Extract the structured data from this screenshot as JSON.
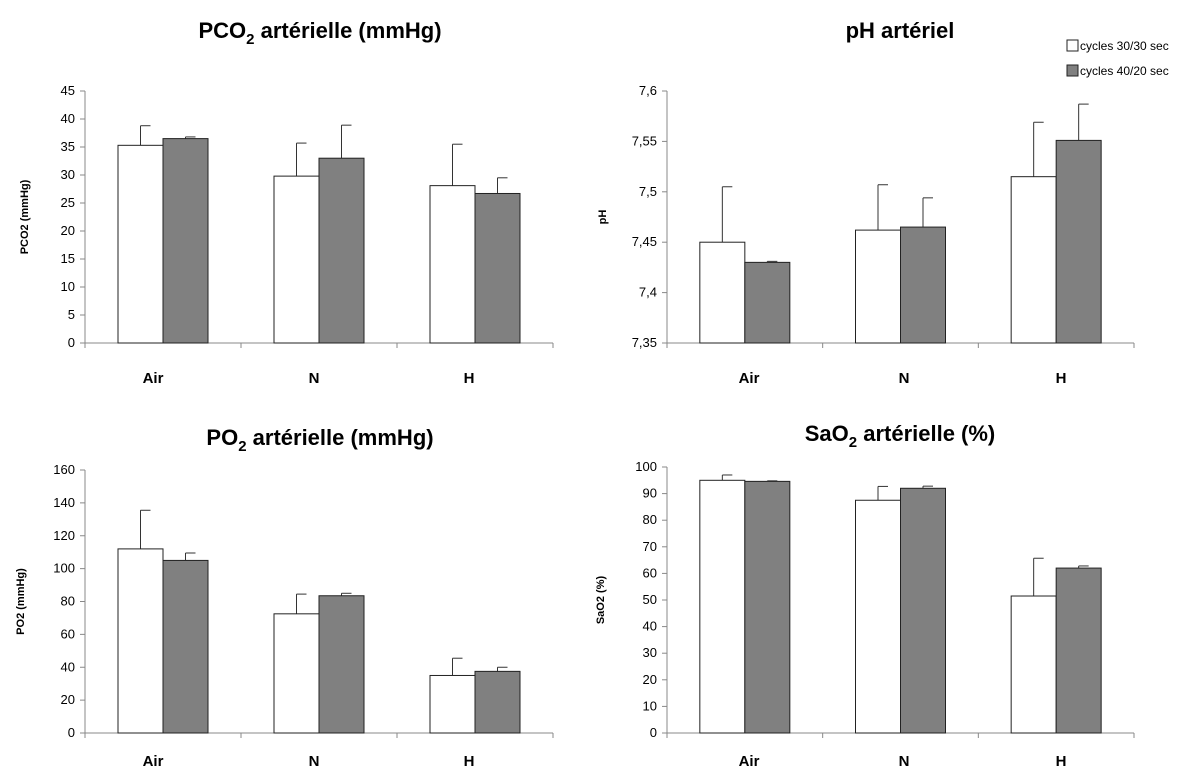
{
  "legend": {
    "series1_label": "cycles 30/30 sec",
    "series2_label": "cycles 40/20 sec",
    "series1_color": "#ffffff",
    "series2_color": "#808080",
    "placement": "top-right"
  },
  "chart_data": [
    {
      "type": "bar",
      "title_main": "PCO",
      "title_sub": "2",
      "title_rest": " artérielle (mmHg)",
      "ylabel": "PCO2 (mmHg)",
      "categories": [
        "Air",
        "N",
        "H"
      ],
      "ylim": [
        0,
        45
      ],
      "yticks": [
        "0",
        "5",
        "10",
        "15",
        "20",
        "25",
        "30",
        "35",
        "40",
        "45"
      ],
      "ytick_values": [
        0,
        5,
        10,
        15,
        20,
        25,
        30,
        35,
        40,
        45
      ],
      "series": [
        {
          "name": "cycles 30/30 sec",
          "values": [
            35.3,
            29.8,
            28.1
          ],
          "errors": [
            3.5,
            5.9,
            7.4
          ]
        },
        {
          "name": "cycles 40/20 sec",
          "values": [
            36.5,
            33.0,
            26.7
          ],
          "errors": [
            0.3,
            5.9,
            2.8
          ]
        }
      ]
    },
    {
      "type": "bar",
      "title_main": "pH artériel",
      "title_sub": "",
      "title_rest": "",
      "ylabel": "pH",
      "categories": [
        "Air",
        "N",
        "H"
      ],
      "ylim": [
        7.35,
        7.6
      ],
      "yticks": [
        "7,35",
        "7,4",
        "7,45",
        "7,5",
        "7,55",
        "7,6"
      ],
      "ytick_values": [
        7.35,
        7.4,
        7.45,
        7.5,
        7.55,
        7.6
      ],
      "series": [
        {
          "name": "cycles 30/30 sec",
          "values": [
            7.45,
            7.462,
            7.515
          ],
          "errors": [
            0.055,
            0.045,
            0.054
          ]
        },
        {
          "name": "cycles 40/20 sec",
          "values": [
            7.43,
            7.465,
            7.551
          ],
          "errors": [
            0.001,
            0.029,
            0.036
          ]
        }
      ]
    },
    {
      "type": "bar",
      "title_main": "PO",
      "title_sub": "2",
      "title_rest": " artérielle (mmHg)",
      "ylabel": "PO2 (mmHg)",
      "categories": [
        "Air",
        "N",
        "H"
      ],
      "ylim": [
        0,
        160
      ],
      "yticks": [
        "0",
        "20",
        "40",
        "60",
        "80",
        "100",
        "120",
        "140",
        "160"
      ],
      "ytick_values": [
        0,
        20,
        40,
        60,
        80,
        100,
        120,
        140,
        160
      ],
      "series": [
        {
          "name": "cycles 30/30 sec",
          "values": [
            112,
            72.5,
            35
          ],
          "errors": [
            23.5,
            12,
            10.5
          ]
        },
        {
          "name": "cycles 40/20 sec",
          "values": [
            105,
            83.5,
            37.5
          ],
          "errors": [
            4.5,
            1.5,
            2.5
          ]
        }
      ]
    },
    {
      "type": "bar",
      "title_main": "SaO",
      "title_sub": "2",
      "title_rest": " artérielle (%)",
      "ylabel": "SaO2 (%)",
      "categories": [
        "Air",
        "N",
        "H"
      ],
      "ylim": [
        0,
        100
      ],
      "yticks": [
        "0",
        "10",
        "20",
        "30",
        "40",
        "50",
        "60",
        "70",
        "80",
        "90",
        "100"
      ],
      "ytick_values": [
        0,
        10,
        20,
        30,
        40,
        50,
        60,
        70,
        80,
        90,
        100
      ],
      "series": [
        {
          "name": "cycles 30/30 sec",
          "values": [
            95,
            87.5,
            51.5
          ],
          "errors": [
            2,
            5.2,
            14.2
          ]
        },
        {
          "name": "cycles 40/20 sec",
          "values": [
            94.6,
            92,
            62
          ],
          "errors": [
            0.2,
            0.8,
            0.8
          ]
        }
      ]
    }
  ]
}
